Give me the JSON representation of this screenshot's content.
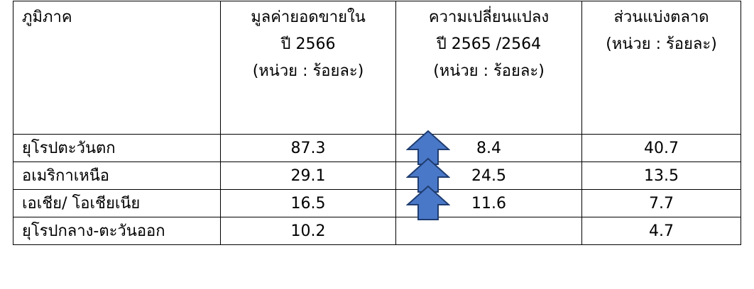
{
  "colors": {
    "arrow_fill": "#4a78c8",
    "arrow_stroke": "#1f3d70",
    "border": "#000000"
  },
  "table": {
    "headers": [
      {
        "lines": [
          "ภูมิภาค"
        ]
      },
      {
        "lines": [
          "มูลค่ายอดขายใน",
          "ปี 2566",
          "(หน่วย : ร้อยละ)"
        ]
      },
      {
        "lines": [
          "ความเปลี่ยนแปลง",
          "ปี 2565 /2564",
          "(หน่วย : ร้อยละ)"
        ]
      },
      {
        "lines": [
          "ส่วนแบ่งตลาด",
          "(หน่วย : ร้อยละ)"
        ]
      }
    ],
    "rows": [
      {
        "region": "ยุโรปตะวันตก",
        "sales": "87.3",
        "change": "8.4",
        "change_icon": "up-arrow-icon",
        "share": "40.7"
      },
      {
        "region": "อเมริกาเหนือ",
        "sales": "29.1",
        "change": "24.5",
        "change_icon": "up-arrow-icon",
        "share": "13.5"
      },
      {
        "region": "เอเชีย/ โอเชียเนีย",
        "sales": "16.5",
        "change": "11.6",
        "change_icon": "up-arrow-icon",
        "share": "7.7"
      },
      {
        "region": "ยุโรปกลาง-ตะวันออก",
        "sales": "10.2",
        "change": "",
        "change_icon": "",
        "share": "4.7"
      }
    ]
  }
}
